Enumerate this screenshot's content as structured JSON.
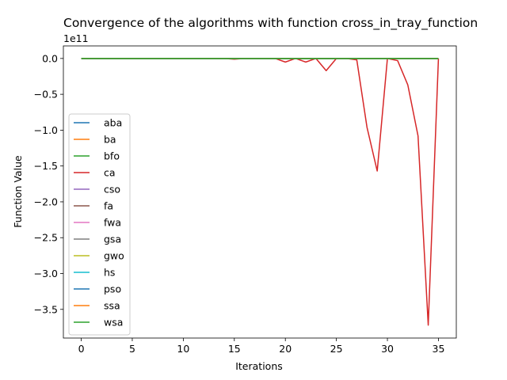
{
  "chart_data": {
    "type": "line",
    "title": "Convergence of the algorithms with function cross_in_tray_function",
    "xlabel": "Iterations",
    "ylabel": "Function Value",
    "offset_label": "1e11",
    "xlim": [
      -1.75,
      36.75
    ],
    "ylim": [
      -3.9,
      0.175
    ],
    "y_scale_exponent": 11,
    "xticks": [
      0,
      5,
      10,
      15,
      20,
      25,
      30,
      35
    ],
    "xtick_labels": [
      "0",
      "5",
      "10",
      "15",
      "20",
      "25",
      "30",
      "35"
    ],
    "yticks": [
      0.0,
      -0.5,
      -1.0,
      -1.5,
      -2.0,
      -2.5,
      -3.0,
      -3.5
    ],
    "ytick_labels": [
      "0.0",
      "−0.5",
      "−1.0",
      "−1.5",
      "−2.0",
      "−2.5",
      "−3.0",
      "−3.5"
    ],
    "x": [
      0,
      1,
      2,
      3,
      4,
      5,
      6,
      7,
      8,
      9,
      10,
      11,
      12,
      13,
      14,
      15,
      16,
      17,
      18,
      19,
      20,
      21,
      22,
      23,
      24,
      25,
      26,
      27,
      28,
      29,
      30,
      31,
      32,
      33,
      34,
      35
    ],
    "legend_position": "center-left",
    "series": [
      {
        "name": "aba",
        "color": "#1f77b4",
        "values": [
          0,
          0,
          0,
          0,
          0,
          0,
          0,
          0,
          0,
          0,
          0,
          0,
          0,
          0,
          0,
          0,
          0,
          0,
          0,
          0,
          0,
          0,
          0,
          0,
          0,
          0,
          0,
          0,
          0,
          0,
          0,
          0,
          0,
          0,
          0,
          0
        ]
      },
      {
        "name": "ba",
        "color": "#ff7f0e",
        "values": [
          0,
          0,
          0,
          0,
          0,
          0,
          0,
          0,
          0,
          0,
          0,
          0,
          0,
          0,
          0,
          0,
          0,
          0,
          0,
          0,
          0,
          0,
          0,
          0,
          0,
          0,
          0,
          0,
          0,
          0,
          0,
          0,
          0,
          0,
          0,
          0
        ]
      },
      {
        "name": "bfo",
        "color": "#2ca02c",
        "values": [
          0,
          0,
          0,
          0,
          0,
          0,
          0,
          0,
          0,
          0,
          0,
          0,
          0,
          0,
          0,
          0,
          0,
          0,
          0,
          0,
          0,
          0,
          0,
          0,
          0,
          0,
          0,
          0,
          0,
          0,
          0,
          0,
          0,
          0,
          0,
          0
        ]
      },
      {
        "name": "ca",
        "color": "#d62728",
        "values": [
          0,
          0,
          0,
          0,
          0,
          0,
          0,
          0,
          0,
          0,
          0,
          0,
          0,
          0,
          0,
          -0.01,
          0,
          0,
          0,
          0,
          -0.05,
          0,
          -0.05,
          0,
          -0.17,
          0,
          0,
          -0.02,
          -0.96,
          -1.57,
          0,
          -0.03,
          -0.37,
          -1.08,
          -3.72,
          0
        ]
      },
      {
        "name": "cso",
        "color": "#9467bd",
        "values": [
          0,
          0,
          0,
          0,
          0,
          0,
          0,
          0,
          0,
          0,
          0,
          0,
          0,
          0,
          0,
          0,
          0,
          0,
          0,
          0,
          0,
          0,
          0,
          0,
          0,
          0,
          0,
          0,
          0,
          0,
          0,
          0,
          0,
          0,
          0,
          0
        ]
      },
      {
        "name": "fa",
        "color": "#8c564b",
        "values": [
          0,
          0,
          0,
          0,
          0,
          0,
          0,
          0,
          0,
          0,
          0,
          0,
          0,
          0,
          0,
          0,
          0,
          0,
          0,
          0,
          0,
          0,
          0,
          0,
          0,
          0,
          0,
          0,
          0,
          0,
          0,
          0,
          0,
          0,
          0,
          0
        ]
      },
      {
        "name": "fwa",
        "color": "#e377c2",
        "values": [
          0,
          0,
          0,
          0,
          0,
          0,
          0,
          0,
          0,
          0,
          0,
          0,
          0,
          0,
          0,
          0,
          0,
          0,
          0,
          0,
          0,
          0,
          0,
          0,
          0,
          0,
          0,
          0,
          0,
          0,
          0,
          0,
          0,
          0,
          0,
          0
        ]
      },
      {
        "name": "gsa",
        "color": "#7f7f7f",
        "values": [
          0,
          0,
          0,
          0,
          0,
          0,
          0,
          0,
          0,
          0,
          0,
          0,
          0,
          0,
          0,
          0,
          0,
          0,
          0,
          0,
          0,
          0,
          0,
          0,
          0,
          0,
          0,
          0,
          0,
          0,
          0,
          0,
          0,
          0,
          0,
          0
        ]
      },
      {
        "name": "gwo",
        "color": "#bcbd22",
        "values": [
          0,
          0,
          0,
          0,
          0,
          0,
          0,
          0,
          0,
          0,
          0,
          0,
          0,
          0,
          0,
          0,
          0,
          0,
          0,
          0,
          0,
          0,
          0,
          0,
          0,
          0,
          0,
          0,
          0,
          0,
          0,
          0,
          0,
          0,
          0,
          0
        ]
      },
      {
        "name": "hs",
        "color": "#17becf",
        "values": [
          0,
          0,
          0,
          0,
          0,
          0,
          0,
          0,
          0,
          0,
          0,
          0,
          0,
          0,
          0,
          0,
          0,
          0,
          0,
          0,
          0,
          0,
          0,
          0,
          0,
          0,
          0,
          0,
          0,
          0,
          0,
          0,
          0,
          0,
          0,
          0
        ]
      },
      {
        "name": "pso",
        "color": "#1f77b4",
        "values": [
          0,
          0,
          0,
          0,
          0,
          0,
          0,
          0,
          0,
          0,
          0,
          0,
          0,
          0,
          0,
          0,
          0,
          0,
          0,
          0,
          0,
          0,
          0,
          0,
          0,
          0,
          0,
          0,
          0,
          0,
          0,
          0,
          0,
          0,
          0,
          0
        ]
      },
      {
        "name": "ssa",
        "color": "#ff7f0e",
        "values": [
          0,
          0,
          0,
          0,
          0,
          0,
          0,
          0,
          0,
          0,
          0,
          0,
          0,
          0,
          0,
          0,
          0,
          0,
          0,
          0,
          0,
          0,
          0,
          0,
          0,
          0,
          0,
          0,
          0,
          0,
          0,
          0,
          0,
          0,
          0,
          0
        ]
      },
      {
        "name": "wsa",
        "color": "#2ca02c",
        "values": [
          0,
          0,
          0,
          0,
          0,
          0,
          0,
          0,
          0,
          0,
          0,
          0,
          0,
          0,
          0,
          0,
          0,
          0,
          0,
          0,
          0,
          0,
          0,
          0,
          0,
          0,
          0,
          0,
          0,
          0,
          0,
          0,
          0,
          0,
          0,
          0
        ]
      }
    ]
  }
}
